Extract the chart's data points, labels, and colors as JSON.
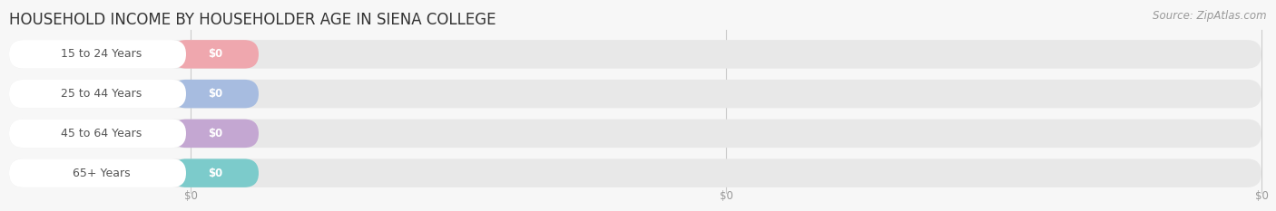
{
  "title": "HOUSEHOLD INCOME BY HOUSEHOLDER AGE IN SIENA COLLEGE",
  "source": "Source: ZipAtlas.com",
  "categories": [
    "15 to 24 Years",
    "25 to 44 Years",
    "45 to 64 Years",
    "65+ Years"
  ],
  "values": [
    0,
    0,
    0,
    0
  ],
  "bar_colors": [
    "#f0a0a8",
    "#a0b8e0",
    "#c0a0d0",
    "#70c8c8"
  ],
  "bar_label": [
    "$0",
    "$0",
    "$0",
    "$0"
  ],
  "bg_bar_color": "#e8e8e8",
  "label_box_color": "#ffffff",
  "background_color": "#f7f7f7",
  "title_fontsize": 12,
  "source_fontsize": 8.5,
  "cat_fontsize": 9,
  "val_fontsize": 8.5,
  "tick_fontsize": 8.5,
  "tick_label_color": "#999999",
  "title_color": "#333333",
  "source_color": "#999999"
}
